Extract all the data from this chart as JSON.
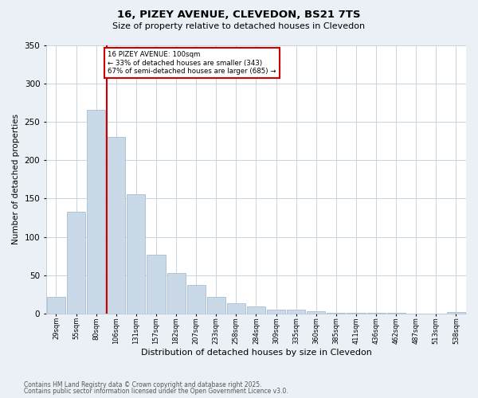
{
  "title": "16, PIZEY AVENUE, CLEVEDON, BS21 7TS",
  "subtitle": "Size of property relative to detached houses in Clevedon",
  "xlabel": "Distribution of detached houses by size in Clevedon",
  "ylabel": "Number of detached properties",
  "bar_labels": [
    "29sqm",
    "55sqm",
    "80sqm",
    "106sqm",
    "131sqm",
    "157sqm",
    "182sqm",
    "207sqm",
    "233sqm",
    "258sqm",
    "284sqm",
    "309sqm",
    "335sqm",
    "360sqm",
    "385sqm",
    "411sqm",
    "436sqm",
    "462sqm",
    "487sqm",
    "513sqm",
    "538sqm"
  ],
  "bar_heights": [
    22,
    133,
    265,
    230,
    155,
    77,
    53,
    37,
    22,
    13,
    9,
    5,
    5,
    3,
    1,
    1,
    1,
    1,
    0,
    0,
    2
  ],
  "bar_color": "#c9d9e8",
  "bar_edgecolor": "#a8bdd0",
  "red_line_index": 3,
  "red_line_color": "#cc0000",
  "annotation_text": "16 PIZEY AVENUE: 100sqm\n← 33% of detached houses are smaller (343)\n67% of semi-detached houses are larger (685) →",
  "annotation_box_edgecolor": "#cc0000",
  "ylim": [
    0,
    350
  ],
  "yticks": [
    0,
    50,
    100,
    150,
    200,
    250,
    300,
    350
  ],
  "footer1": "Contains HM Land Registry data © Crown copyright and database right 2025.",
  "footer2": "Contains public sector information licensed under the Open Government Licence v3.0.",
  "background_color": "#eaf0f6",
  "plot_bg_color": "#ffffff",
  "grid_color": "#c8d4de"
}
